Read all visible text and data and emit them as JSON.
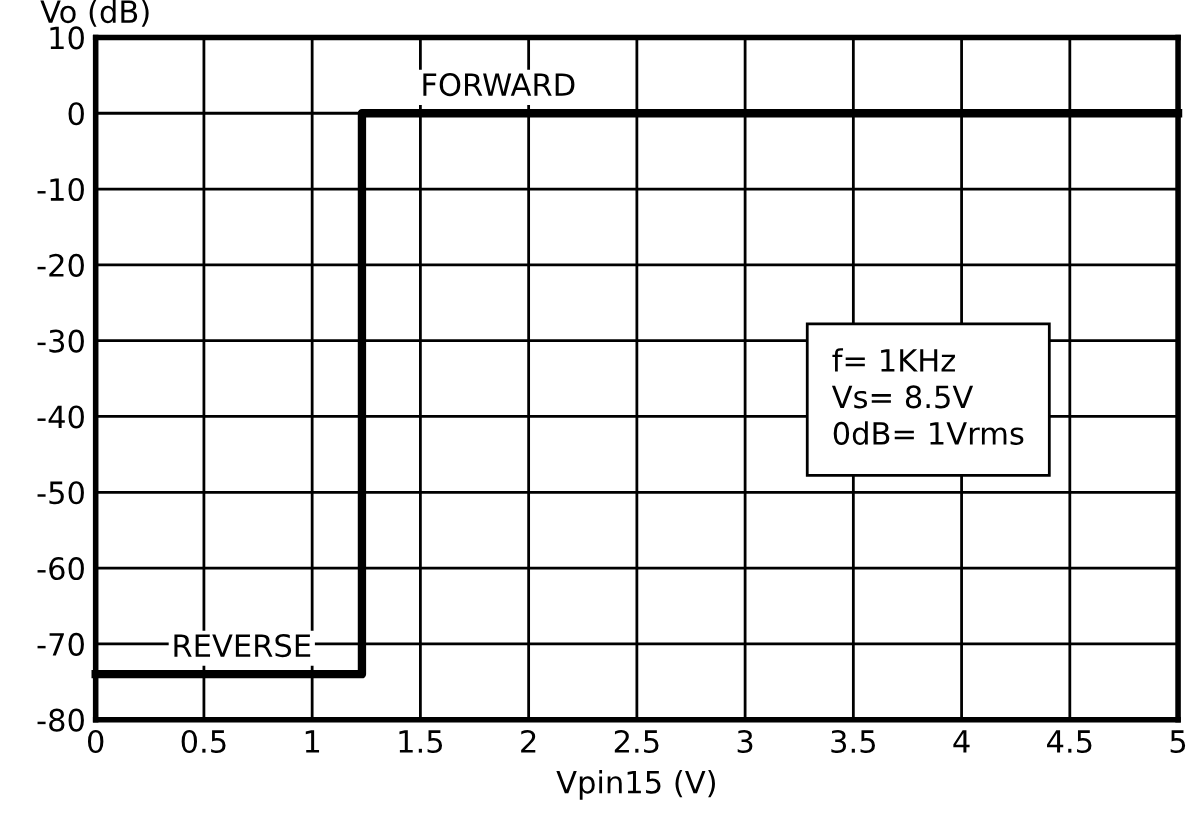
{
  "chart_data": {
    "type": "line",
    "xlabel": "Vpin15 (V)",
    "ylabel": "Vo (dB)",
    "x": [
      0,
      1.23,
      1.23,
      5
    ],
    "series": [
      {
        "color": "#000000",
        "values": [
          -74,
          -74,
          0,
          0
        ]
      }
    ],
    "xlim": [
      0,
      5
    ],
    "xticks": [
      0,
      0.5,
      1,
      1.5,
      2,
      2.5,
      3,
      3.5,
      4,
      4.5,
      5
    ],
    "ylim": [
      -80,
      10
    ],
    "yticks": [
      -80,
      -70,
      -60,
      -50,
      -40,
      -30,
      -20,
      -10,
      0,
      10
    ],
    "grid": true,
    "marker": "none",
    "line_style": "solid",
    "annotations": [
      {
        "text": "FORWARD",
        "x": 1.5,
        "y": 0
      },
      {
        "text": "REVERSE",
        "x": 0.35,
        "y": -74
      },
      "f= 1KHz\nVs= 8.5V\n0dB= 1Vrms"
    ]
  }
}
